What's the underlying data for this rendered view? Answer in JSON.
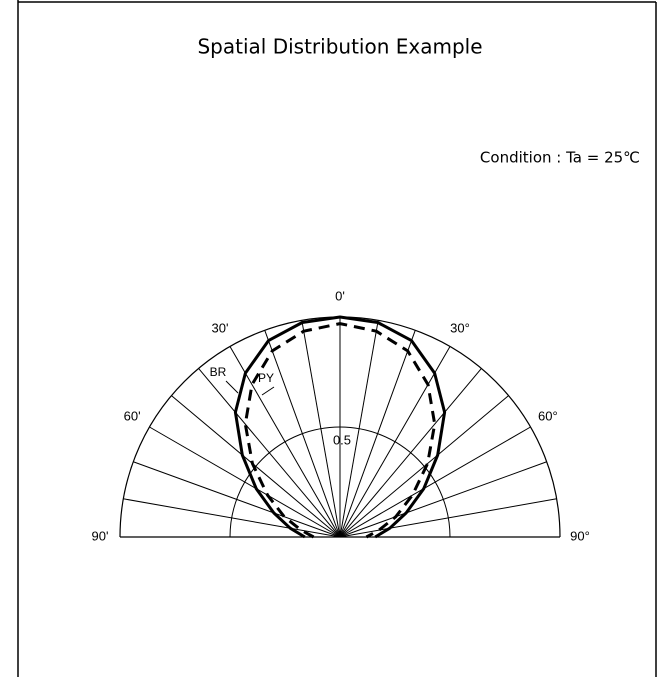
{
  "chart_data": {
    "type": "polar",
    "title": "Spatial Distribution Example",
    "annotation": "Condition : Ta = 25℃",
    "angles": [
      -90,
      -80,
      -70,
      -60,
      -50,
      -40,
      -30,
      -20,
      -10,
      0,
      10,
      20,
      30,
      40,
      50,
      60,
      70,
      80,
      90
    ],
    "series": [
      {
        "name": "BR",
        "color": "#000000",
        "dashed": false,
        "values": [
          0.16,
          0.23,
          0.32,
          0.44,
          0.58,
          0.74,
          0.86,
          0.95,
          0.99,
          1.0,
          0.99,
          0.95,
          0.86,
          0.74,
          0.58,
          0.44,
          0.32,
          0.23,
          0.16
        ]
      },
      {
        "name": "PY",
        "color": "#000000",
        "dashed": true,
        "values": [
          0.12,
          0.18,
          0.27,
          0.38,
          0.52,
          0.67,
          0.8,
          0.9,
          0.95,
          0.97,
          0.95,
          0.9,
          0.8,
          0.67,
          0.52,
          0.38,
          0.27,
          0.18,
          0.12
        ]
      }
    ],
    "rlim": [
      0,
      1
    ],
    "rticks": [
      0.5
    ],
    "angle_ticks": [
      {
        "value": -90,
        "label": "90'"
      },
      {
        "value": -60,
        "label": "60'"
      },
      {
        "value": -30,
        "label": "30'"
      },
      {
        "value": 0,
        "label": "0'"
      },
      {
        "value": 30,
        "label": "30°"
      },
      {
        "value": 60,
        "label": "60°"
      },
      {
        "value": 90,
        "label": "90°"
      }
    ]
  }
}
